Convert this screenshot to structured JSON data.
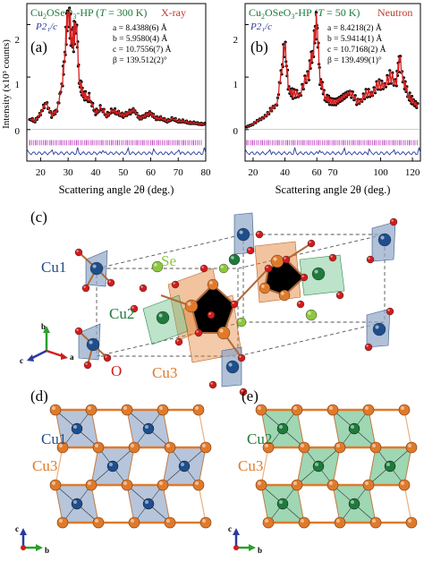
{
  "panel_a": {
    "title_formula": "Cu",
    "title_sub": "2",
    "title_mid": "OSeO",
    "title_sub2": "3",
    "title_end": "-HP (",
    "title_T": "T",
    "title_temp": " = 300 K)",
    "probe": "X-ray",
    "tag": "(a)",
    "space_group": "P2₁/c",
    "params": [
      "a = 8.4388(6) Å",
      "b = 5.9580(4) Å",
      "c = 10.7556(7) Å",
      "β = 139.512(2)°"
    ],
    "x_ticks": [
      "20",
      "30",
      "40",
      "50",
      "60",
      "70",
      "80"
    ],
    "y_ticks": [
      "2",
      "1",
      "0"
    ],
    "xlabel": "Scattering angle 2θ (deg.)",
    "ylabel": "Intensity (x10³ counts)"
  },
  "panel_b": {
    "title_formula": "Cu",
    "title_sub": "2",
    "title_mid": "OSeO",
    "title_sub2": "3",
    "title_end": "-HP (",
    "title_T": "T",
    "title_temp": " = 50 K)",
    "probe": "Neutron",
    "tag": "(b)",
    "space_group": "P2₁/c",
    "params": [
      "a = 8.4218(2) Å",
      "b = 5.9414(1) Å",
      "c = 10.7168(2) Å",
      "β = 139.499(1)°"
    ],
    "x_ticks": [
      "20",
      "40",
      "60",
      "70",
      "100",
      "120"
    ],
    "y_ticks": [
      "2",
      "1",
      "0"
    ],
    "xlabel": "Scattering angle 2θ (deg.)"
  },
  "panel_c": {
    "tag": "(c)",
    "labels": {
      "cu1": "Cu1",
      "se": "Se",
      "cu2": "Cu2",
      "cu3": "Cu3",
      "o": "O"
    },
    "axes": {
      "b": "b",
      "c": "c",
      "a": "a"
    }
  },
  "panel_d": {
    "tag": "(d)",
    "labels": {
      "cu1": "Cu1",
      "cu3": "Cu3"
    },
    "axes": {
      "c": "c",
      "b": "b"
    }
  },
  "panel_e": {
    "tag": "(e)",
    "labels": {
      "cu2": "Cu2",
      "cu3": "Cu3"
    },
    "axes": {
      "c": "c",
      "b": "b"
    }
  },
  "colors": {
    "cu1": "#1f4e8c",
    "cu2": "#1f7a3c",
    "cu3": "#e07a2a",
    "se": "#8dc63f",
    "o": "#d01c1c",
    "fit": "#d42020",
    "tick": "#c040c0",
    "diff": "#2a3aa0",
    "title_green": "#1a7a3a",
    "title_red": "#c0392b",
    "blue_poly": "#8fa6c8",
    "green_poly": "#6cc08a"
  },
  "chart_data": [
    {
      "type": "line",
      "title": "Cu2OSeO3-HP (T = 300 K) X-ray",
      "xlabel": "Scattering angle 2θ (deg.)",
      "ylabel": "Intensity (x10³ counts)",
      "xlim": [
        15,
        80
      ],
      "ylim": [
        -0.6,
        2.4
      ],
      "series": [
        {
          "name": "obs",
          "x": [
            16,
            18,
            20,
            22,
            24,
            26,
            28,
            29,
            30,
            31,
            32,
            33,
            34,
            35,
            36,
            38,
            40,
            42,
            44,
            46,
            48,
            50,
            52,
            54,
            56,
            58,
            60,
            62,
            64,
            66,
            68,
            70,
            72,
            74,
            76,
            78,
            80
          ],
          "y": [
            0.2,
            0.15,
            0.3,
            0.5,
            0.25,
            0.35,
            0.9,
            1.5,
            2.2,
            1.7,
            1.6,
            2.0,
            0.9,
            0.7,
            0.6,
            0.55,
            0.3,
            0.4,
            0.25,
            0.35,
            0.3,
            0.25,
            0.3,
            0.35,
            0.2,
            0.25,
            0.3,
            0.2,
            0.2,
            0.15,
            0.2,
            0.15,
            0.15,
            0.12,
            0.12,
            0.1,
            0.1
          ]
        }
      ]
    },
    {
      "type": "line",
      "title": "Cu2OSeO3-HP (T = 50 K) Neutron",
      "xlabel": "Scattering angle 2θ (deg.)",
      "xlim": [
        15,
        125
      ],
      "ylim": [
        -0.6,
        2.4
      ],
      "series": [
        {
          "name": "obs",
          "x": [
            16,
            20,
            25,
            30,
            35,
            38,
            40,
            42,
            45,
            50,
            55,
            58,
            60,
            62,
            65,
            68,
            72,
            76,
            80,
            85,
            90,
            95,
            100,
            105,
            110,
            112,
            115,
            118,
            120,
            124
          ],
          "y": [
            0.05,
            0.1,
            0.2,
            0.3,
            0.5,
            1.1,
            1.6,
            0.8,
            0.6,
            0.7,
            1.0,
            1.5,
            2.0,
            0.9,
            0.6,
            0.5,
            0.5,
            0.6,
            0.7,
            0.5,
            0.6,
            0.7,
            0.8,
            0.9,
            0.9,
            1.3,
            0.8,
            0.6,
            0.5,
            0.4
          ]
        }
      ]
    }
  ]
}
